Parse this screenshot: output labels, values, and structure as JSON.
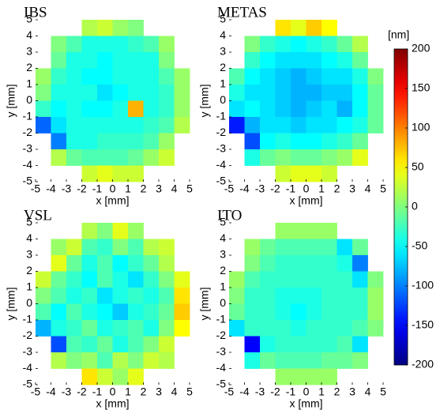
{
  "chart_data": [
    {
      "type": "heatmap",
      "title": "IBS",
      "xlabel": "x [mm]",
      "ylabel": "y [mm]",
      "xlim": [
        -5,
        5
      ],
      "ylim": [
        -5,
        5
      ],
      "xticks": [
        -5,
        -4,
        -3,
        -2,
        -1,
        0,
        1,
        2,
        3,
        4,
        5
      ],
      "yticks": [
        -5,
        -4,
        -3,
        -2,
        -1,
        0,
        1,
        2,
        3,
        4,
        5
      ],
      "z": [
        [
          null,
          null,
          null,
          20,
          30,
          10,
          0,
          null,
          null,
          null
        ],
        [
          null,
          0,
          -20,
          -40,
          -40,
          -40,
          -30,
          -20,
          10,
          null
        ],
        [
          null,
          -10,
          -40,
          -40,
          -50,
          -40,
          -40,
          -40,
          0,
          null
        ],
        [
          10,
          -30,
          -40,
          -50,
          -50,
          -40,
          -40,
          -40,
          -20,
          10
        ],
        [
          0,
          -40,
          -40,
          -40,
          -60,
          -50,
          -40,
          -40,
          -30,
          10
        ],
        [
          -30,
          -50,
          -40,
          -50,
          -50,
          -40,
          80,
          -40,
          -30,
          10
        ],
        [
          -110,
          -60,
          -40,
          -40,
          -40,
          -40,
          -40,
          -30,
          -20,
          20
        ],
        [
          null,
          -100,
          -40,
          -40,
          -30,
          -30,
          -30,
          -20,
          10,
          null
        ],
        [
          null,
          20,
          -10,
          -20,
          -20,
          -20,
          -10,
          10,
          30,
          null
        ],
        [
          null,
          null,
          null,
          30,
          40,
          30,
          30,
          null,
          null,
          null
        ]
      ]
    },
    {
      "type": "heatmap",
      "title": "METAS",
      "xlabel": "x [mm]",
      "ylabel": "y [mm]",
      "xlim": [
        -5,
        5
      ],
      "ylim": [
        -5,
        5
      ],
      "xticks": [
        -5,
        -4,
        -3,
        -2,
        -1,
        0,
        1,
        2,
        3,
        4,
        5
      ],
      "yticks": [
        -5,
        -4,
        -3,
        -2,
        -1,
        0,
        1,
        2,
        3,
        4,
        5
      ],
      "z": [
        [
          null,
          null,
          null,
          60,
          40,
          70,
          50,
          null,
          null,
          null
        ],
        [
          null,
          0,
          -30,
          -40,
          -50,
          -40,
          -30,
          -10,
          20,
          null
        ],
        [
          null,
          -30,
          -50,
          -60,
          -60,
          -60,
          -50,
          -40,
          -10,
          null
        ],
        [
          -20,
          -50,
          -60,
          -70,
          -80,
          -70,
          -60,
          -60,
          -40,
          0
        ],
        [
          -40,
          -60,
          -60,
          -70,
          -80,
          -80,
          -70,
          -70,
          -50,
          -10
        ],
        [
          -60,
          -50,
          -60,
          -70,
          -80,
          -70,
          -60,
          -80,
          -50,
          -10
        ],
        [
          -140,
          -80,
          -60,
          -60,
          -70,
          -60,
          -60,
          -50,
          -40,
          -10
        ],
        [
          null,
          -120,
          -50,
          -40,
          -50,
          -50,
          -40,
          -30,
          -10,
          null
        ],
        [
          null,
          -40,
          -10,
          0,
          -10,
          -10,
          0,
          10,
          40,
          null
        ],
        [
          null,
          null,
          null,
          30,
          40,
          40,
          30,
          null,
          null,
          null
        ]
      ]
    },
    {
      "type": "heatmap",
      "title": "VSL",
      "xlabel": "x [mm]",
      "ylabel": "y [mm]",
      "xlim": [
        -5,
        5
      ],
      "ylim": [
        -5,
        5
      ],
      "xticks": [
        -5,
        -4,
        -3,
        -2,
        -1,
        0,
        1,
        2,
        3,
        4,
        5
      ],
      "yticks": [
        -5,
        -4,
        -3,
        -2,
        -1,
        0,
        1,
        2,
        3,
        4,
        5
      ],
      "z": [
        [
          null,
          null,
          null,
          20,
          0,
          40,
          10,
          null,
          null,
          null
        ],
        [
          null,
          10,
          30,
          -20,
          -30,
          0,
          -20,
          20,
          30,
          null
        ],
        [
          null,
          40,
          -10,
          -40,
          -20,
          -50,
          -30,
          -10,
          20,
          null
        ],
        [
          30,
          -10,
          -30,
          -50,
          -20,
          -40,
          -60,
          -30,
          0,
          40
        ],
        [
          0,
          -20,
          -40,
          -30,
          -60,
          -40,
          -30,
          -40,
          -20,
          60
        ],
        [
          -20,
          -50,
          -20,
          -40,
          -50,
          -70,
          -40,
          -30,
          -10,
          70
        ],
        [
          -80,
          -40,
          -30,
          -10,
          -40,
          -30,
          -20,
          -40,
          0,
          50
        ],
        [
          null,
          -120,
          -20,
          -30,
          -10,
          -40,
          -20,
          0,
          30,
          null
        ],
        [
          null,
          20,
          0,
          10,
          -20,
          20,
          0,
          30,
          20,
          null
        ],
        [
          null,
          null,
          null,
          60,
          30,
          10,
          40,
          null,
          null,
          null
        ]
      ]
    },
    {
      "type": "heatmap",
      "title": "ITO",
      "xlabel": "x [mm]",
      "ylabel": "y [mm]",
      "xlim": [
        -5,
        5
      ],
      "ylim": [
        -5,
        5
      ],
      "xticks": [
        -5,
        -4,
        -3,
        -2,
        -1,
        0,
        1,
        2,
        3,
        4,
        5
      ],
      "yticks": [
        -5,
        -4,
        -3,
        -2,
        -1,
        0,
        1,
        2,
        3,
        4,
        5
      ],
      "z": [
        [
          null,
          null,
          null,
          10,
          10,
          10,
          10,
          null,
          null,
          null
        ],
        [
          null,
          10,
          -10,
          -20,
          -20,
          -20,
          -20,
          -60,
          -10,
          null
        ],
        [
          null,
          0,
          -20,
          -30,
          -30,
          -30,
          -30,
          -40,
          -100,
          null
        ],
        [
          10,
          -20,
          -30,
          -30,
          -30,
          -30,
          -30,
          -30,
          -60,
          0
        ],
        [
          0,
          -30,
          -30,
          -40,
          -40,
          -40,
          -30,
          -30,
          -30,
          10
        ],
        [
          -10,
          -30,
          -30,
          -40,
          -50,
          -40,
          -30,
          -30,
          -30,
          10
        ],
        [
          -60,
          -30,
          -30,
          -30,
          -40,
          -30,
          -30,
          -30,
          -20,
          0
        ],
        [
          null,
          -150,
          -40,
          -30,
          -30,
          -30,
          -30,
          -20,
          -60,
          null
        ],
        [
          null,
          -40,
          -10,
          -20,
          -20,
          -20,
          -10,
          -10,
          0,
          null
        ],
        [
          null,
          null,
          null,
          10,
          10,
          10,
          10,
          null,
          null,
          null
        ]
      ]
    }
  ],
  "colorbar": {
    "label": "[nm]",
    "lim": [
      -200,
      200
    ],
    "ticks": [
      -200,
      -150,
      -100,
      -50,
      0,
      50,
      100,
      150,
      200
    ],
    "colormap": "jet"
  }
}
